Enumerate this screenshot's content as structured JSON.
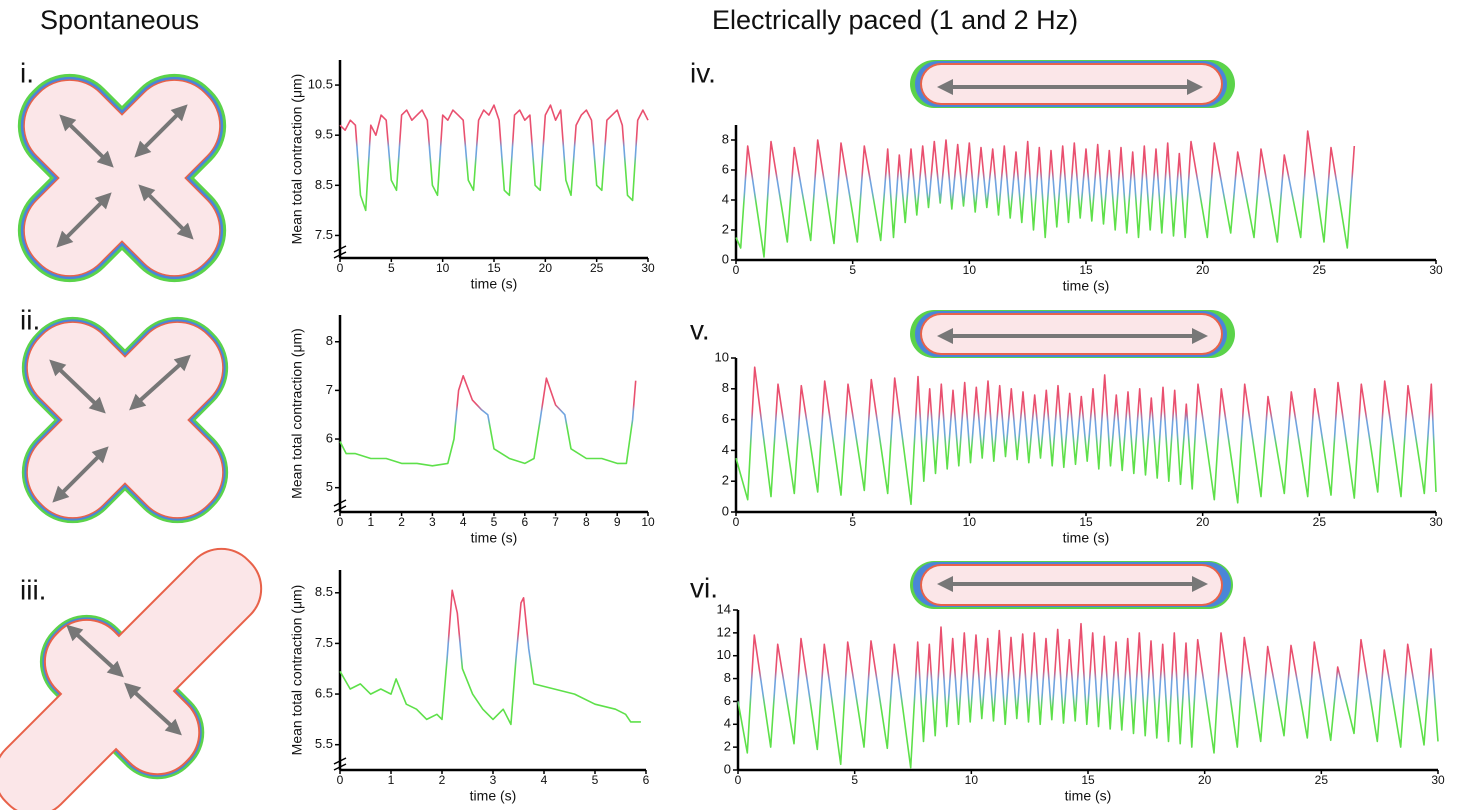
{
  "headings": [
    "Spontaneous",
    "Electrically paced (1 and 2 Hz)"
  ],
  "chart_data": [
    {
      "type": "line",
      "label": "i.",
      "xlabel": "time (s)",
      "ylabel": "Mean total contraction (μm)",
      "y_axis_break": true,
      "colors": [
        "#5ee04a",
        "#6fa4e0",
        "#e9506f"
      ],
      "x": [
        0,
        0.5,
        1,
        1.5,
        2,
        2.5,
        3,
        3.5,
        4,
        4.5,
        5,
        5.5,
        6,
        6.5,
        7,
        7.5,
        8,
        8.5,
        9,
        9.5,
        10,
        10.5,
        11,
        11.5,
        12,
        12.5,
        13,
        13.5,
        14,
        14.5,
        15,
        15.5,
        16,
        16.5,
        17,
        17.5,
        18,
        18.5,
        19,
        19.5,
        20,
        20.5,
        21,
        21.5,
        22,
        22.5,
        23,
        23.5,
        24,
        24.5,
        25,
        25.5,
        26,
        26.5,
        27,
        27.5,
        28,
        28.5,
        29,
        29.5,
        30
      ],
      "values": [
        9.7,
        9.6,
        9.8,
        9.7,
        8.3,
        8.0,
        9.7,
        9.5,
        9.9,
        9.8,
        8.6,
        8.4,
        9.9,
        10.0,
        9.8,
        9.9,
        10.0,
        9.8,
        8.5,
        8.3,
        9.9,
        9.8,
        10.0,
        9.9,
        9.8,
        8.6,
        8.4,
        9.8,
        10.0,
        9.9,
        10.1,
        9.8,
        8.4,
        8.3,
        9.9,
        10.0,
        9.8,
        9.9,
        8.5,
        8.4,
        9.9,
        10.1,
        9.8,
        10.0,
        8.6,
        8.3,
        9.7,
        9.9,
        10.0,
        9.8,
        8.5,
        8.4,
        9.8,
        9.9,
        10.0,
        9.7,
        8.3,
        8.2,
        9.8,
        10.0,
        9.8
      ],
      "xlim": [
        0,
        30
      ],
      "xticks": [
        0,
        5,
        10,
        15,
        20,
        25,
        30
      ],
      "ylim": [
        7.05,
        11
      ],
      "yticks": [
        7.5,
        8.5,
        9.5,
        10.5
      ]
    },
    {
      "type": "line",
      "label": "ii.",
      "xlabel": "time (s)",
      "ylabel": "Mean total contraction (μm)",
      "y_axis_break": true,
      "colors": [
        "#5ee04a",
        "#6fa4e0",
        "#e9506f"
      ],
      "x": [
        0,
        0.2,
        0.5,
        1,
        1.5,
        2,
        2.5,
        3,
        3.5,
        3.7,
        3.85,
        4.0,
        4.3,
        4.6,
        4.8,
        5.0,
        5.5,
        6.0,
        6.3,
        6.5,
        6.7,
        7.0,
        7.3,
        7.5,
        8,
        8.5,
        9,
        9.3,
        9.5,
        9.6
      ],
      "values": [
        5.95,
        5.7,
        5.7,
        5.6,
        5.6,
        5.5,
        5.5,
        5.45,
        5.5,
        6.0,
        7.0,
        7.3,
        6.8,
        6.6,
        6.5,
        5.8,
        5.6,
        5.5,
        5.6,
        6.4,
        7.25,
        6.7,
        6.5,
        5.8,
        5.6,
        5.6,
        5.5,
        5.5,
        6.4,
        7.2
      ],
      "xlim": [
        0,
        10
      ],
      "xticks": [
        0,
        1,
        2,
        3,
        4,
        5,
        6,
        7,
        8,
        9,
        10
      ],
      "ylim": [
        4.5,
        8.55
      ],
      "yticks": [
        5,
        6,
        7,
        8
      ]
    },
    {
      "type": "line",
      "label": "iii.",
      "xlabel": "time (s)",
      "ylabel": "Mean total contraction (μm)",
      "y_axis_break": true,
      "colors": [
        "#5ee04a",
        "#6fa4e0",
        "#e9506f"
      ],
      "x": [
        0,
        0.2,
        0.4,
        0.6,
        0.8,
        1.0,
        1.1,
        1.3,
        1.5,
        1.7,
        1.9,
        2.0,
        2.1,
        2.2,
        2.3,
        2.4,
        2.6,
        2.8,
        3.0,
        3.2,
        3.35,
        3.45,
        3.55,
        3.6,
        3.7,
        3.8,
        4.2,
        4.6,
        5.0,
        5.4,
        5.6,
        5.7,
        5.9
      ],
      "values": [
        6.95,
        6.6,
        6.7,
        6.5,
        6.6,
        6.5,
        6.8,
        6.3,
        6.2,
        6.0,
        6.1,
        6.0,
        7.2,
        8.55,
        8.1,
        7.0,
        6.5,
        6.2,
        6.0,
        6.2,
        5.9,
        7.2,
        8.3,
        8.4,
        7.4,
        6.7,
        6.6,
        6.5,
        6.3,
        6.2,
        6.1,
        5.95,
        5.95
      ],
      "xlim": [
        0,
        6
      ],
      "xticks": [
        0,
        1,
        2,
        3,
        4,
        5,
        6
      ],
      "ylim": [
        5.0,
        8.95
      ],
      "yticks": [
        5.5,
        6.5,
        7.5,
        8.5
      ]
    },
    {
      "type": "line",
      "label": "iv.",
      "xlabel": "time (s)",
      "colors": [
        "#5ee04a",
        "#6fa4e0",
        "#e9506f"
      ],
      "x": [
        0,
        0.2,
        0.5,
        1.2,
        1.5,
        2.2,
        2.5,
        3.2,
        3.5,
        4.2,
        4.5,
        5.2,
        5.5,
        6.2,
        6.5,
        6.75,
        7.0,
        7.25,
        7.5,
        7.75,
        8.0,
        8.25,
        8.5,
        8.75,
        9.0,
        9.25,
        9.5,
        9.75,
        10.0,
        10.25,
        10.5,
        10.75,
        11.0,
        11.25,
        11.5,
        11.75,
        12.0,
        12.25,
        12.5,
        12.75,
        13.0,
        13.25,
        13.5,
        13.75,
        14.0,
        14.25,
        14.5,
        14.75,
        15.0,
        15.25,
        15.5,
        15.75,
        16.0,
        16.25,
        16.5,
        16.75,
        17.0,
        17.25,
        17.5,
        17.75,
        18.0,
        18.25,
        18.5,
        18.75,
        19.0,
        19.25,
        19.5,
        20.2,
        20.5,
        21.2,
        21.5,
        22.2,
        22.5,
        23.2,
        23.5,
        24.2,
        24.5,
        25.2,
        25.5,
        26.2,
        26.5
      ],
      "values": [
        1.5,
        0.8,
        7.6,
        0.2,
        7.9,
        1.2,
        7.5,
        1.3,
        8.0,
        1.1,
        7.8,
        1.2,
        7.6,
        1.3,
        7.4,
        1.5,
        7.0,
        2.5,
        7.4,
        3.0,
        7.6,
        3.5,
        7.9,
        3.8,
        8.0,
        3.4,
        7.7,
        3.6,
        7.8,
        3.2,
        7.5,
        3.5,
        7.4,
        3.0,
        7.6,
        2.8,
        7.2,
        2.5,
        7.9,
        2.0,
        7.5,
        1.5,
        7.3,
        2.2,
        7.6,
        2.5,
        7.8,
        2.8,
        7.4,
        2.6,
        7.7,
        2.4,
        7.3,
        2.0,
        7.5,
        1.8,
        7.2,
        1.5,
        7.6,
        2.0,
        7.4,
        1.8,
        7.8,
        1.6,
        7.1,
        1.5,
        7.9,
        1.5,
        7.8,
        1.8,
        7.2,
        1.5,
        7.4,
        1.2,
        7.0,
        1.5,
        8.6,
        1.2,
        7.5,
        0.8,
        7.6
      ],
      "xlim": [
        0,
        30
      ],
      "xticks": [
        0,
        5,
        10,
        15,
        20,
        25,
        30
      ],
      "ylim": [
        0,
        9
      ],
      "yticks": [
        0,
        2,
        4,
        6,
        8
      ]
    },
    {
      "type": "line",
      "label": "v.",
      "xlabel": "time (s)",
      "colors": [
        "#5ee04a",
        "#6fa4e0",
        "#e9506f"
      ],
      "x": [
        0,
        0.5,
        0.8,
        1.5,
        1.8,
        2.5,
        2.8,
        3.5,
        3.8,
        4.5,
        4.8,
        5.5,
        5.8,
        6.5,
        6.8,
        7.5,
        7.8,
        8.05,
        8.3,
        8.55,
        8.8,
        9.05,
        9.3,
        9.55,
        9.8,
        10.05,
        10.3,
        10.55,
        10.8,
        11.05,
        11.3,
        11.55,
        11.8,
        12.05,
        12.3,
        12.55,
        12.8,
        13.05,
        13.3,
        13.55,
        13.8,
        14.05,
        14.3,
        14.55,
        14.8,
        15.05,
        15.3,
        15.55,
        15.8,
        16.05,
        16.3,
        16.55,
        16.8,
        17.05,
        17.3,
        17.55,
        17.8,
        18.05,
        18.3,
        18.55,
        18.8,
        19.05,
        19.3,
        19.55,
        19.8,
        20.5,
        20.8,
        21.5,
        21.8,
        22.5,
        22.8,
        23.5,
        23.8,
        24.5,
        24.8,
        25.5,
        25.8,
        26.5,
        26.8,
        27.5,
        27.8,
        28.5,
        28.8,
        29.5,
        29.8,
        30
      ],
      "values": [
        3.5,
        0.8,
        9.4,
        1.0,
        8.3,
        1.2,
        8.2,
        1.3,
        8.5,
        1.1,
        8.3,
        1.4,
        8.6,
        1.2,
        8.7,
        0.5,
        8.8,
        2.0,
        8.0,
        2.5,
        8.3,
        2.8,
        7.9,
        3.0,
        8.4,
        3.2,
        8.1,
        3.5,
        8.5,
        3.3,
        8.2,
        3.6,
        8.0,
        3.4,
        7.8,
        3.2,
        7.6,
        3.5,
        7.9,
        3.0,
        8.2,
        2.9,
        7.7,
        3.1,
        7.5,
        3.3,
        8.0,
        2.8,
        8.9,
        3.0,
        7.6,
        2.7,
        7.8,
        2.5,
        8.0,
        2.4,
        7.4,
        2.2,
        8.1,
        2.0,
        7.9,
        1.8,
        7.0,
        1.5,
        8.3,
        0.8,
        8.0,
        0.6,
        8.3,
        1.0,
        7.5,
        1.2,
        7.8,
        1.0,
        8.0,
        1.1,
        8.4,
        0.9,
        8.3,
        1.3,
        8.5,
        1.0,
        8.2,
        1.2,
        8.3,
        1.3
      ],
      "xlim": [
        0,
        30
      ],
      "xticks": [
        0,
        5,
        10,
        15,
        20,
        25,
        30
      ],
      "ylim": [
        0,
        10
      ],
      "yticks": [
        0,
        2,
        4,
        6,
        8,
        10
      ]
    },
    {
      "type": "line",
      "label": "vi.",
      "xlabel": "time (s)",
      "colors": [
        "#5ee04a",
        "#6fa4e0",
        "#e9506f"
      ],
      "x": [
        0,
        0.4,
        0.7,
        1.4,
        1.7,
        2.4,
        2.7,
        3.4,
        3.7,
        4.4,
        4.7,
        5.4,
        5.7,
        6.4,
        6.7,
        7.4,
        7.7,
        7.95,
        8.2,
        8.45,
        8.7,
        8.95,
        9.2,
        9.45,
        9.7,
        9.95,
        10.2,
        10.45,
        10.7,
        10.95,
        11.2,
        11.45,
        11.7,
        11.95,
        12.2,
        12.45,
        12.7,
        12.95,
        13.2,
        13.45,
        13.7,
        13.95,
        14.2,
        14.45,
        14.7,
        14.95,
        15.2,
        15.45,
        15.7,
        15.95,
        16.2,
        16.45,
        16.7,
        16.95,
        17.2,
        17.45,
        17.7,
        17.95,
        18.2,
        18.45,
        18.7,
        18.95,
        19.2,
        19.45,
        19.7,
        20.4,
        20.7,
        21.4,
        21.7,
        22.4,
        22.7,
        23.4,
        23.7,
        24.4,
        24.7,
        25.4,
        25.7,
        26.4,
        26.7,
        27.4,
        27.7,
        28.4,
        28.7,
        29.4,
        29.7,
        30
      ],
      "values": [
        6.0,
        1.5,
        11.8,
        2.0,
        11.0,
        2.3,
        11.5,
        1.8,
        11.0,
        0.5,
        11.2,
        2.0,
        11.3,
        1.9,
        11.0,
        0.2,
        11.2,
        2.5,
        11.0,
        3.0,
        12.5,
        3.8,
        11.5,
        4.0,
        12.0,
        4.2,
        11.8,
        4.5,
        11.5,
        4.3,
        12.2,
        4.0,
        11.6,
        4.5,
        11.9,
        4.2,
        12.0,
        4.0,
        11.5,
        4.4,
        12.3,
        4.1,
        11.4,
        4.3,
        12.8,
        4.0,
        12.0,
        3.8,
        11.7,
        3.6,
        11.2,
        3.5,
        11.5,
        3.2,
        12.0,
        3.0,
        11.3,
        2.8,
        11.0,
        2.5,
        12.0,
        2.3,
        11.1,
        2.0,
        11.4,
        1.5,
        12.0,
        2.0,
        11.6,
        2.5,
        10.8,
        3.0,
        10.9,
        2.8,
        11.2,
        2.6,
        9.0,
        3.2,
        11.4,
        2.5,
        10.5,
        2.0,
        11.0,
        2.2,
        10.6,
        2.5
      ],
      "xlim": [
        0,
        30
      ],
      "xticks": [
        0,
        5,
        10,
        15,
        20,
        25,
        30
      ],
      "ylim": [
        0,
        14
      ],
      "yticks": [
        0,
        2,
        4,
        6,
        8,
        10,
        12,
        14
      ]
    }
  ]
}
